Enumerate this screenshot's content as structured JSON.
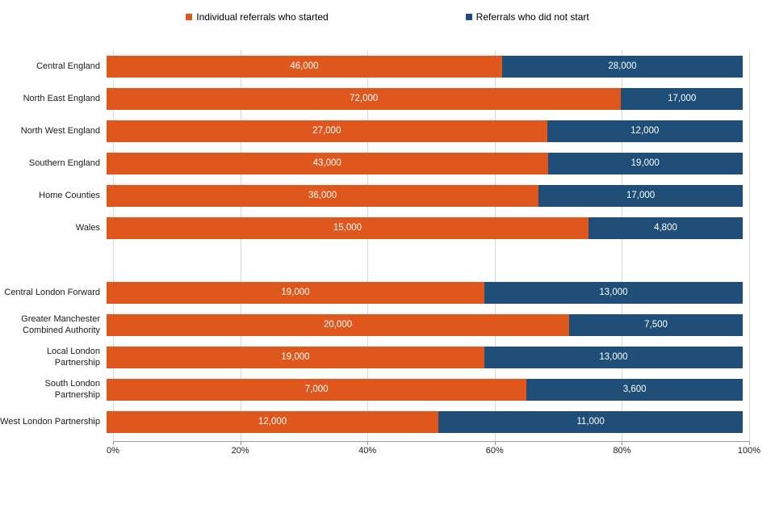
{
  "legend": {
    "items": [
      {
        "label": "Individual referrals who started",
        "color": "#e0571d"
      },
      {
        "label": "Referrals who did not start",
        "color": "#1f4e79"
      }
    ]
  },
  "chart_data": {
    "type": "bar",
    "orientation": "horizontal",
    "stacked": true,
    "percent_scale": true,
    "title": "",
    "xlabel": "",
    "ylabel": "",
    "x_axis": {
      "min": 0,
      "max": 100,
      "ticks": [
        "0%",
        "20%",
        "40%",
        "60%",
        "80%",
        "100%"
      ]
    },
    "grid": true,
    "legend_position": "top",
    "categories": [
      "Central England",
      "North East England",
      "North West England",
      "Southern England",
      "Home Counties",
      "Wales",
      "Central London Forward",
      "Greater Manchester Combined Authority",
      "Local London Partnership",
      "South London Partnership",
      "West London Partnership"
    ],
    "group_break_after_index": 5,
    "series": [
      {
        "name": "Individual referrals who started",
        "color": "#e0571d",
        "values": [
          46000,
          72000,
          27000,
          43000,
          36000,
          15000,
          19000,
          20000,
          19000,
          7000,
          12000
        ]
      },
      {
        "name": "Referrals who did not start",
        "color": "#1f4e79",
        "values": [
          28000,
          17000,
          12000,
          19000,
          17000,
          4800,
          13000,
          7500,
          13000,
          3600,
          11000
        ]
      }
    ],
    "value_labels": [
      [
        "46,000",
        "28,000"
      ],
      [
        "72,000",
        "17,000"
      ],
      [
        "27,000",
        "12,000"
      ],
      [
        "43,000",
        "19,000"
      ],
      [
        "36,000",
        "17,000"
      ],
      [
        "15,000",
        "4,800"
      ],
      [
        "19,000",
        "13,000"
      ],
      [
        "20,000",
        "7,500"
      ],
      [
        "19,000",
        "13,000"
      ],
      [
        "7,000",
        "3,600"
      ],
      [
        "12,000",
        "11,000"
      ]
    ]
  }
}
